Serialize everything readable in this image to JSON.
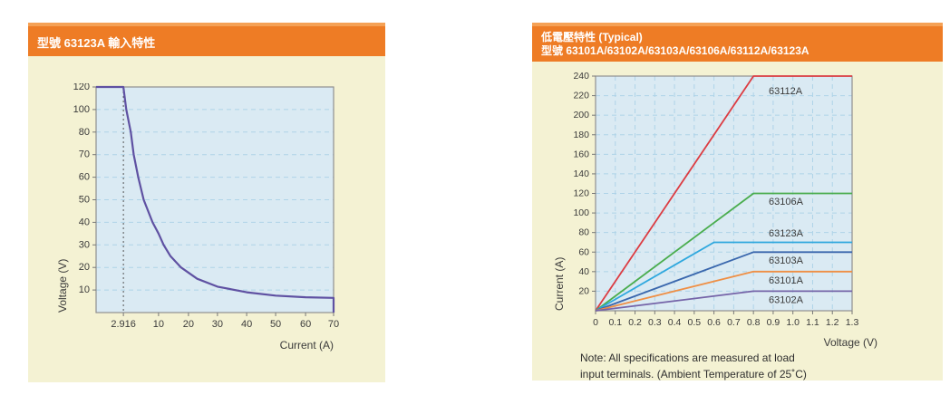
{
  "page": {
    "background": "#ffffff",
    "panel_background": "#f4f2d3",
    "header_color": "#ee7c25",
    "header_highlight": "#f5a155"
  },
  "left_panel": {
    "title": "型號 63123A 輸入特性"
  },
  "right_panel": {
    "title_line1": "低電壓特性 (Typical)",
    "title_line2": "型號 63101A/63102A/63103A/63106A/63112A/63123A",
    "note_line1": "Note: All specifications are measured at load",
    "note_line2": "input terminals. (Ambient Temperature of 25˚C)"
  },
  "chart_data": [
    {
      "id": "left",
      "type": "line",
      "title": "型號 63123A 輸入特性",
      "xlabel": "Current (A)",
      "ylabel": "Voltage (V)",
      "x_tick_labels": [
        "2.916",
        "10",
        "20",
        "30",
        "40",
        "50",
        "60",
        "70"
      ],
      "x_tick_values": [
        2.916,
        10,
        20,
        30,
        40,
        50,
        60,
        70
      ],
      "y_tick_labels": [
        "120",
        "100",
        "80",
        "70",
        "60",
        "50",
        "40",
        "30",
        "20",
        "10"
      ],
      "y_tick_values": [
        120,
        100,
        80,
        70,
        60,
        50,
        40,
        30,
        20,
        10
      ],
      "xlim": [
        0,
        70
      ],
      "ylim": [
        0,
        120
      ],
      "x_scale": {
        "values": [
          0,
          2.916,
          10,
          20,
          30,
          40,
          50,
          60,
          70
        ],
        "fractions": [
          0,
          0.115,
          0.263,
          0.389,
          0.511,
          0.634,
          0.756,
          0.882,
          1
        ]
      },
      "y_scale": {
        "values": [
          0,
          10,
          20,
          30,
          40,
          50,
          60,
          70,
          80,
          100,
          120
        ],
        "fractions": [
          1,
          0.9,
          0.8,
          0.7,
          0.6,
          0.5,
          0.4,
          0.3,
          0.2,
          0.1,
          0
        ]
      },
      "v_grid": false,
      "marker_x": 2.916,
      "series": [
        {
          "name": "63123A input characteristic",
          "color": "#5f51a2",
          "width": 2.2,
          "points": [
            [
              0,
              120
            ],
            [
              2.916,
              120
            ],
            [
              3.5,
              100
            ],
            [
              4.4,
              80
            ],
            [
              5,
              70
            ],
            [
              5.9,
              60
            ],
            [
              7,
              50
            ],
            [
              8.8,
              40
            ],
            [
              10,
              35
            ],
            [
              11.7,
              30
            ],
            [
              14,
              25
            ],
            [
              17.5,
              20
            ],
            [
              23,
              15
            ],
            [
              30,
              11.5
            ],
            [
              40,
              9
            ],
            [
              50,
              7.5
            ],
            [
              60,
              6.8
            ],
            [
              70,
              6.5
            ],
            [
              70,
              0
            ]
          ]
        }
      ],
      "colors": {
        "plot_bg": "#daeaf3",
        "grid": "#aed3e8",
        "border": "#8f8f8f",
        "marker": "#555555"
      }
    },
    {
      "id": "right",
      "type": "line",
      "title": "低電壓特性 (Typical) 型號 63101A/63102A/63103A/63106A/63112A/63123A",
      "xlabel": "Voltage (V)",
      "ylabel": "Current (A)",
      "x_tick_labels": [
        "0",
        "0.1",
        "0.2",
        "0.3",
        "0.4",
        "0.5",
        "0.6",
        "0.7",
        "0.8",
        "0.9",
        "1.0",
        "1.1",
        "1.2",
        "1.3"
      ],
      "x_tick_values": [
        0,
        0.1,
        0.2,
        0.3,
        0.4,
        0.5,
        0.6,
        0.7,
        0.8,
        0.9,
        1.0,
        1.1,
        1.2,
        1.3
      ],
      "y_tick_labels": [
        "240",
        "220",
        "200",
        "180",
        "160",
        "140",
        "120",
        "100",
        "80",
        "60",
        "40",
        "20"
      ],
      "y_tick_values": [
        240,
        220,
        200,
        180,
        160,
        140,
        120,
        100,
        80,
        60,
        40,
        20
      ],
      "xlim": [
        0,
        1.3
      ],
      "ylim": [
        0,
        240
      ],
      "x_scale": {
        "values": [
          0,
          1.3
        ],
        "fractions": [
          0,
          1
        ]
      },
      "y_scale": {
        "values": [
          0,
          240
        ],
        "fractions": [
          1,
          0
        ]
      },
      "v_grid": true,
      "series": [
        {
          "name": "63112A",
          "color": "#dc3c42",
          "width": 1.8,
          "points": [
            [
              0,
              0
            ],
            [
              0.8,
              240
            ],
            [
              1.3,
              240
            ]
          ],
          "label_pos": [
            0.675,
            0.066
          ]
        },
        {
          "name": "63106A",
          "color": "#4aad4e",
          "width": 1.8,
          "points": [
            [
              0,
              0
            ],
            [
              0.8,
              120
            ],
            [
              1.3,
              120
            ]
          ],
          "label_pos": [
            0.675,
            0.537
          ]
        },
        {
          "name": "63123A",
          "color": "#2fa8de",
          "width": 1.8,
          "points": [
            [
              0,
              0
            ],
            [
              0.6,
              70
            ],
            [
              1.3,
              70
            ]
          ],
          "label_pos": [
            0.675,
            0.672
          ]
        },
        {
          "name": "63103A",
          "color": "#3a67ad",
          "width": 1.8,
          "points": [
            [
              0,
              0
            ],
            [
              0.8,
              60
            ],
            [
              1.3,
              60
            ]
          ],
          "label_pos": [
            0.675,
            0.787
          ]
        },
        {
          "name": "63101A",
          "color": "#ef8f45",
          "width": 1.8,
          "points": [
            [
              0,
              0
            ],
            [
              0.8,
              40
            ],
            [
              1.3,
              40
            ]
          ],
          "label_pos": [
            0.675,
            0.873
          ]
        },
        {
          "name": "63102A",
          "color": "#7564a8",
          "width": 1.8,
          "points": [
            [
              0,
              0
            ],
            [
              0.8,
              20
            ],
            [
              1.3,
              20
            ]
          ],
          "label_pos": [
            0.675,
            0.955
          ]
        }
      ],
      "note": "Note: All specifications are measured at load input terminals. (Ambient Temperature of 25˚C)",
      "colors": {
        "plot_bg": "#daeaf3",
        "grid": "#aed3e8",
        "border": "#8f8f8f"
      }
    }
  ]
}
